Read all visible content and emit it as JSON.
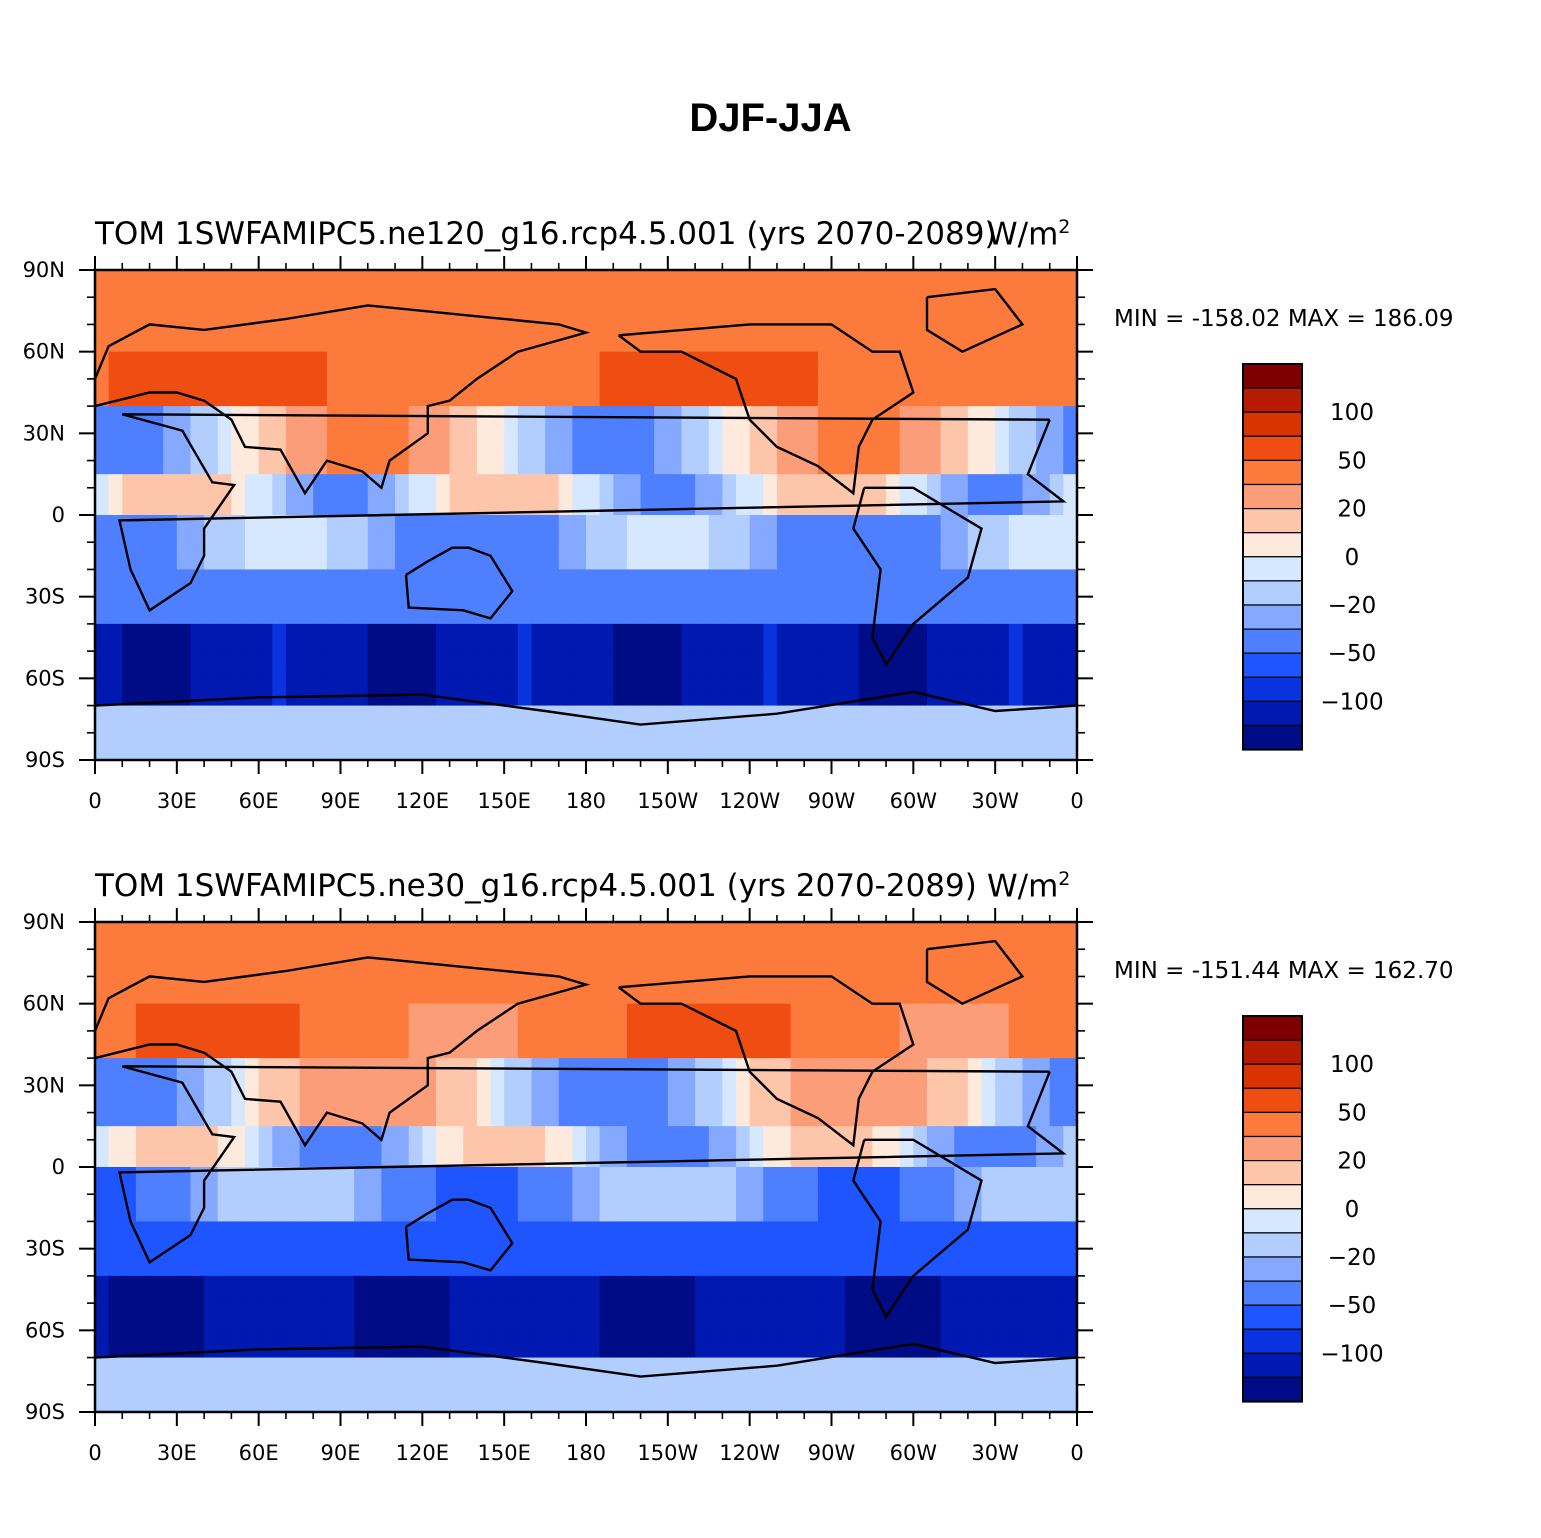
{
  "title": "DJF-JJA",
  "panels": [
    {
      "left_title": "TOM 1SWFAMIPC5.ne120_g16.rcp4.5.001 (yrs 2070-2089)",
      "units": "W/m",
      "units_sup": "2",
      "minmax": "MIN = -158.02  MAX = 186.09"
    },
    {
      "left_title": "TOM 1SWFAMIPC5.ne30_g16.rcp4.5.001 (yrs 2070-2089)",
      "units": "W/m",
      "units_sup": "2",
      "minmax": "MIN = -151.44  MAX = 162.70"
    }
  ],
  "colorbar": {
    "tick_labels": [
      "100",
      "50",
      "20",
      "0",
      "-20",
      "-50",
      "-100"
    ],
    "colors": [
      "#7f0000",
      "#b71c00",
      "#d83300",
      "#f04d12",
      "#fb7a3c",
      "#fc9d79",
      "#fdc6aa",
      "#feeadc",
      "#d6e8ff",
      "#b2ceff",
      "#84a9ff",
      "#4d7fff",
      "#1f55ff",
      "#0a33e0",
      "#0019b0",
      "#000c85"
    ]
  },
  "chart_data": {
    "type": "heatmap",
    "projection": "cylindrical equidistant, 0-360 longitude",
    "x_tick_labels": [
      "0",
      "30E",
      "60E",
      "90E",
      "120E",
      "150E",
      "180",
      "150W",
      "120W",
      "90W",
      "60W",
      "30W",
      "0"
    ],
    "y_tick_labels": [
      "90N",
      "60N",
      "30N",
      "0",
      "30S",
      "60S",
      "90S"
    ],
    "xlim": [
      0,
      360
    ],
    "ylim": [
      -90,
      90
    ],
    "levels_shown": [
      100,
      50,
      20,
      0,
      -20,
      -50,
      -100
    ],
    "panels": [
      {
        "name": "ne120",
        "min": -158.02,
        "max": 186.09
      },
      {
        "name": "ne30",
        "min": -151.44,
        "max": 162.7
      }
    ]
  }
}
